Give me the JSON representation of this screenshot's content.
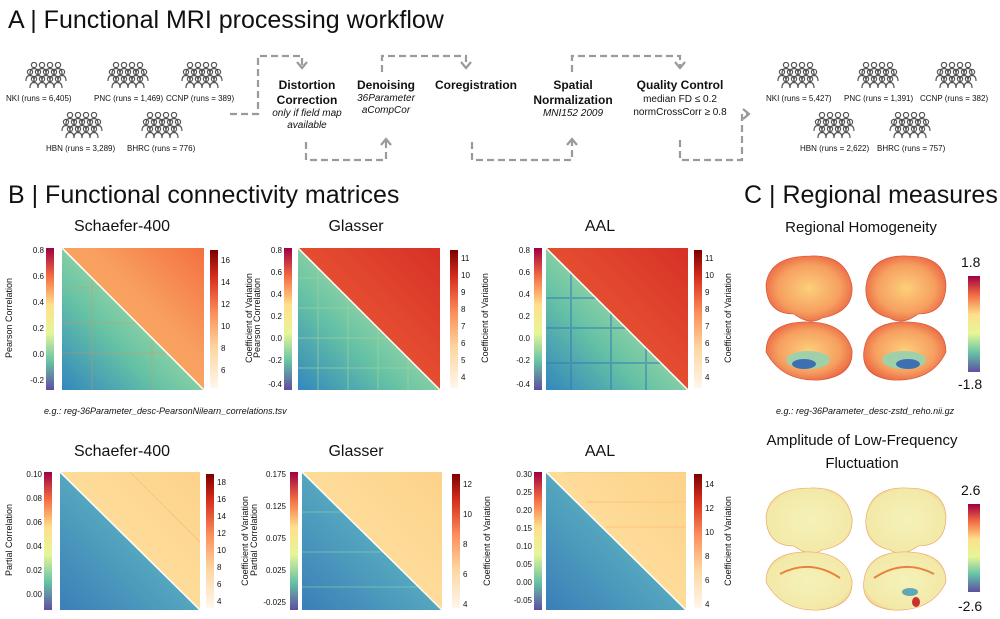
{
  "section_a": {
    "title": "A | Functional MRI processing workflow",
    "input_sites": [
      "NKI (runs = 6,405)",
      "PNC (runs = 1,469)",
      "CCNP (runs = 389)",
      "HBN (runs = 3,289)",
      "BHRC (runs = 776)"
    ],
    "output_sites": [
      "NKI (runs = 5,427)",
      "PNC (runs = 1,391)",
      "CCNP (runs = 382)",
      "HBN (runs = 2,622)",
      "BHRC (runs = 757)"
    ],
    "steps": [
      {
        "title": "Distortion Correction",
        "sub": "only if field map available"
      },
      {
        "title": "Denoising",
        "sub": "36Parameter aCompCor"
      },
      {
        "title": "Coregistration",
        "sub": ""
      },
      {
        "title": "Spatial Normalization",
        "sub": "MNI152 2009"
      },
      {
        "title": "Quality Control",
        "line1": "median FD ≤ 0.2",
        "line2": "normCrossCorr ≥ 0.8"
      }
    ]
  },
  "section_b": {
    "title": "B | Functional connectivity matrices",
    "example_pearson": "e.g.: reg-36Parameter_desc-PearsonNilearn_correlations.tsv",
    "matrix_names": [
      "Schaefer-400",
      "Glasser",
      "AAL"
    ],
    "cv_label": "Coefficient of Variation",
    "pearson_label": "Pearson Correlation",
    "partial_label": "Partial Correlation",
    "pearson_row": {
      "left_ticks": [
        [
          "0.8",
          "0.6",
          "0.4",
          "0.2",
          "0.0",
          "-0.2"
        ],
        [
          "0.8",
          "0.6",
          "0.4",
          "0.2",
          "0.0",
          "-0.2",
          "-0.4"
        ],
        [
          "0.8",
          "0.6",
          "0.4",
          "0.2",
          "0.0",
          "-0.2",
          "-0.4"
        ]
      ],
      "right_ticks": [
        [
          "16",
          "14",
          "12",
          "10",
          "8",
          "6"
        ],
        [
          "11",
          "10",
          "9",
          "8",
          "7",
          "6",
          "5",
          "4"
        ],
        [
          "11",
          "10",
          "9",
          "8",
          "7",
          "6",
          "5",
          "4"
        ]
      ]
    },
    "partial_row": {
      "left_ticks": [
        [
          "0.10",
          "0.08",
          "0.06",
          "0.04",
          "0.02",
          "0.00"
        ],
        [
          "0.175",
          "0.125",
          "0.075",
          "0.025",
          "-0.025"
        ],
        [
          "0.30",
          "0.25",
          "0.20",
          "0.15",
          "0.10",
          "0.05",
          "0.00",
          "-0.05"
        ]
      ],
      "right_ticks": [
        [
          "18",
          "16",
          "14",
          "12",
          "10",
          "8",
          "6",
          "4"
        ],
        [
          "12",
          "10",
          "8",
          "6",
          "4"
        ],
        [
          "14",
          "12",
          "10",
          "8",
          "6",
          "4"
        ]
      ]
    }
  },
  "section_c": {
    "title": "C | Regional measures",
    "reho_title": "Regional Homogeneity",
    "reho_range": [
      "1.8",
      "-1.8"
    ],
    "example": "e.g.: reg-36Parameter_desc-zstd_reho.nii.gz",
    "alff_title_1": "Amplitude of Low-Frequency",
    "alff_title_2": "Fluctuation",
    "alff_range": [
      "2.6",
      "-2.6"
    ]
  },
  "colors": {
    "arrow": "#9a9a9a",
    "people": "#555555"
  }
}
